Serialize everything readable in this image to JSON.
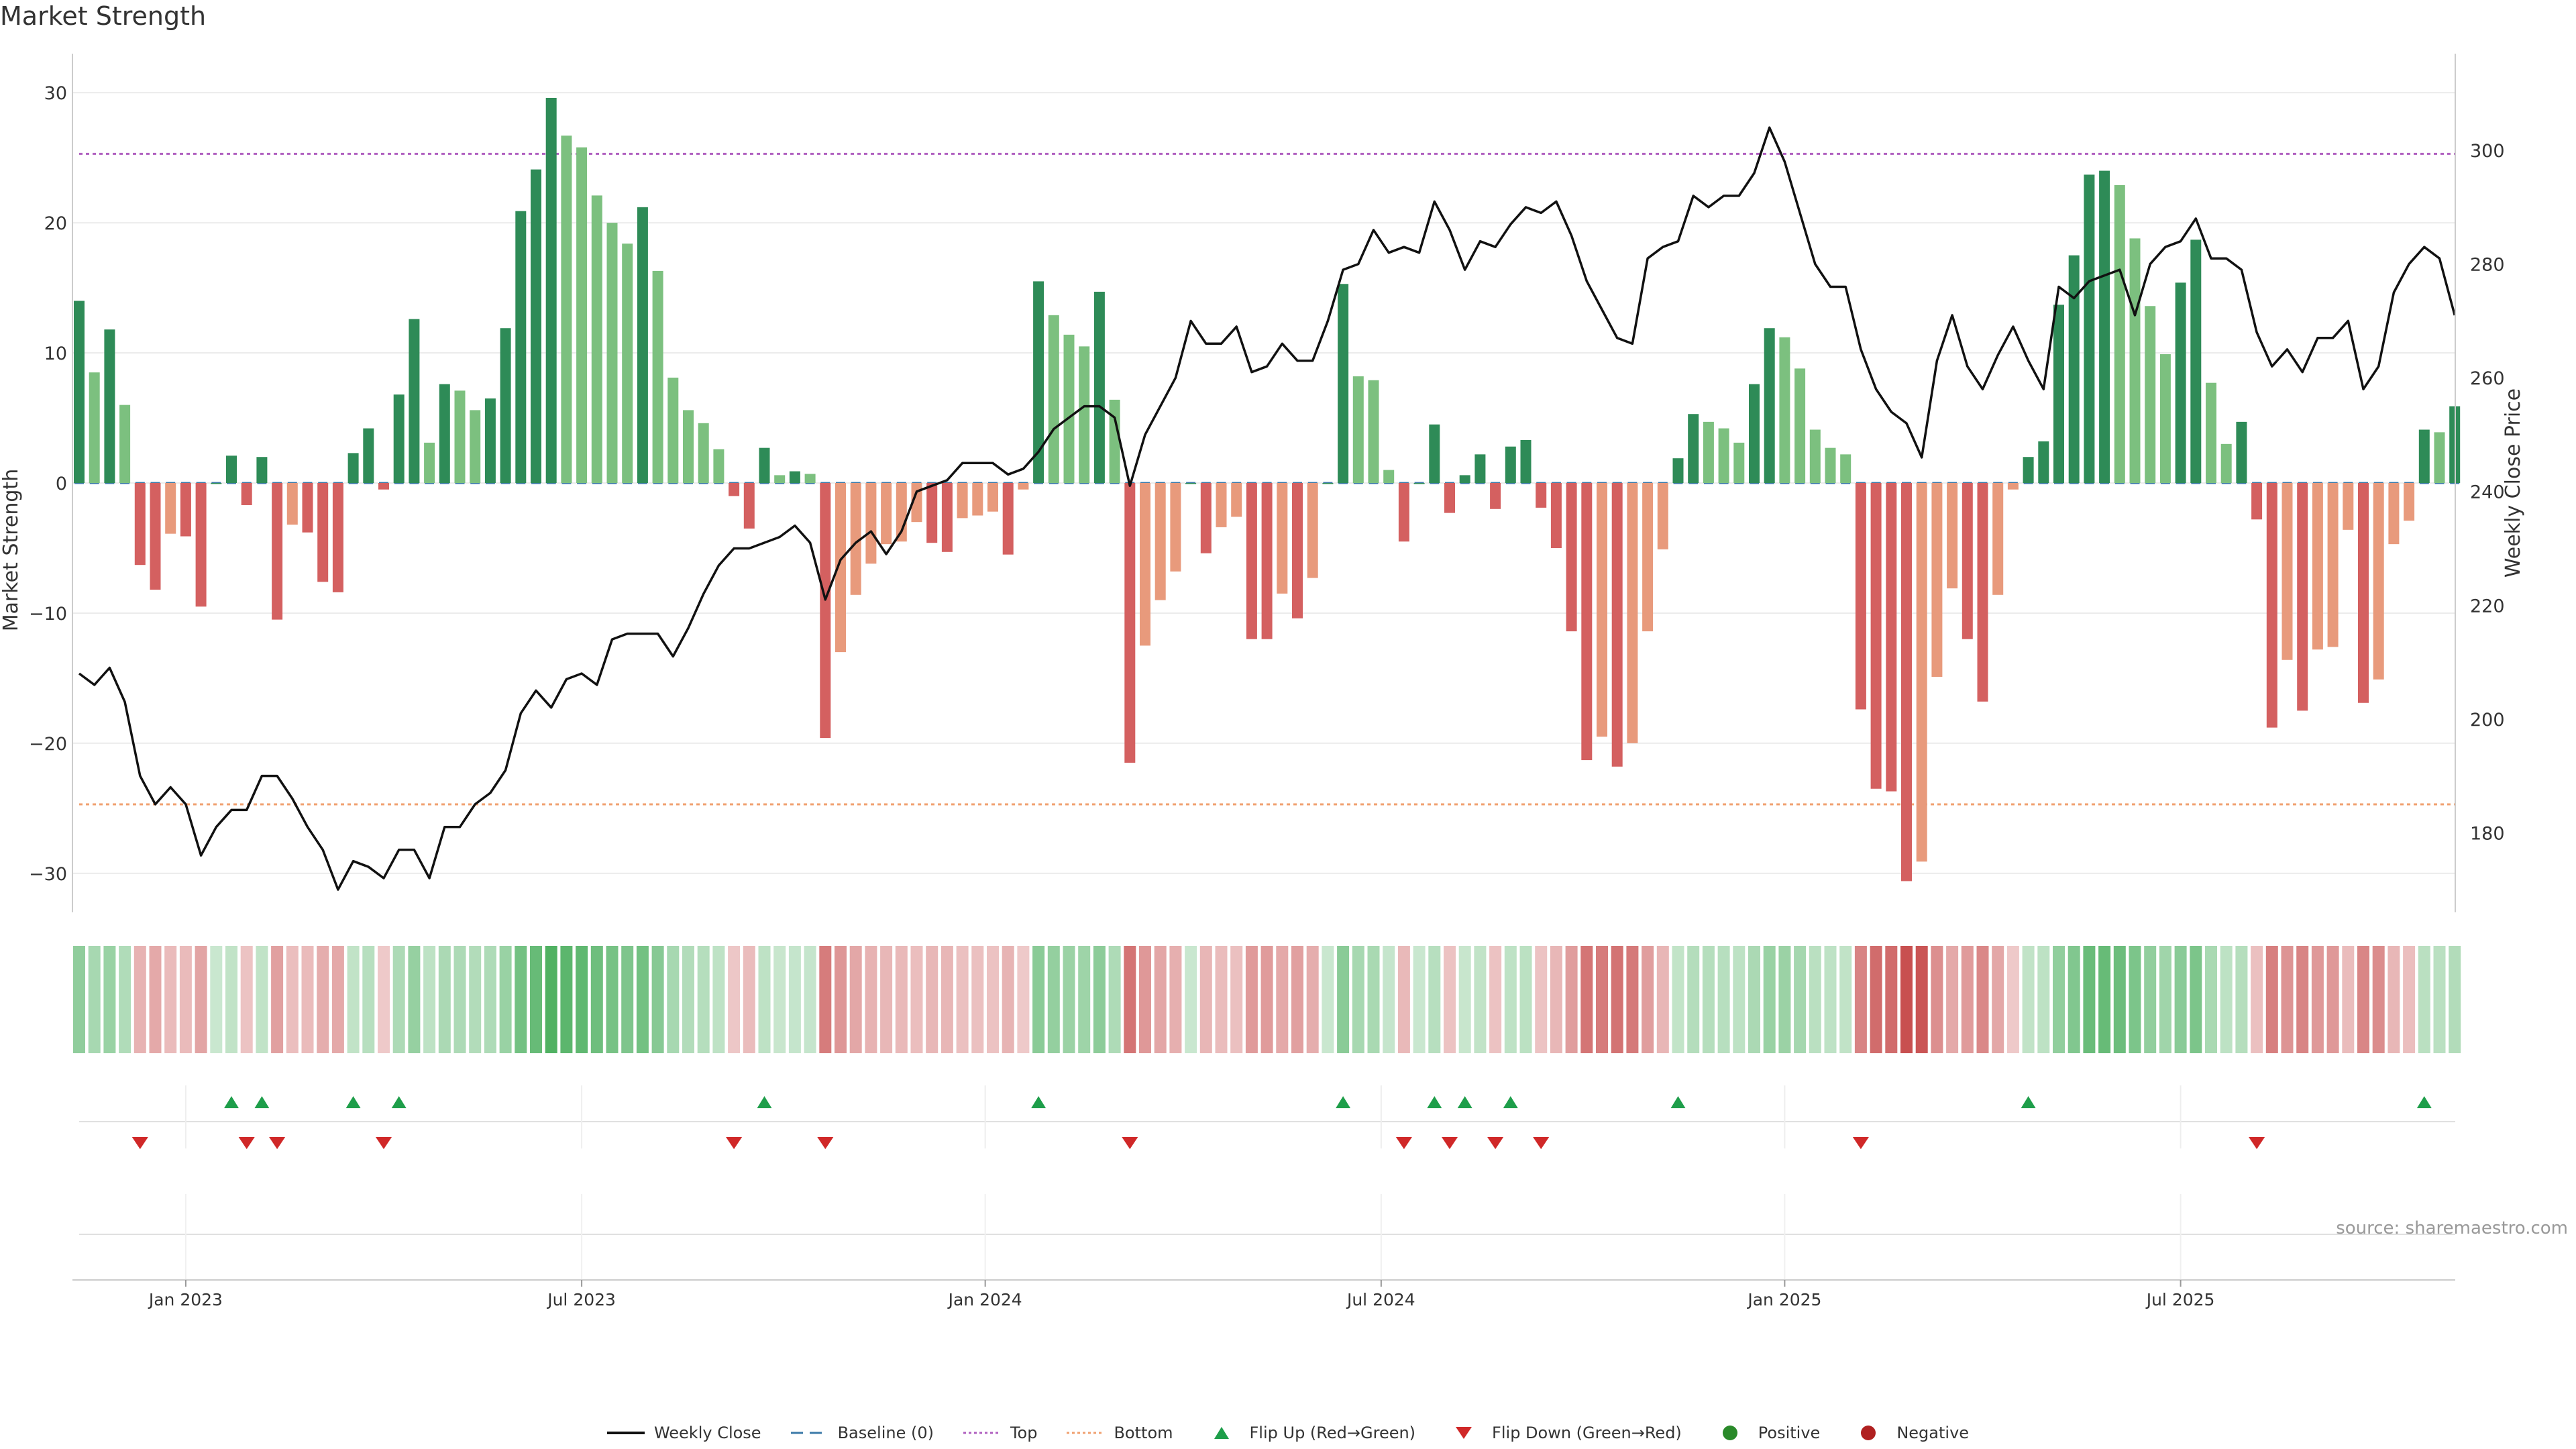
{
  "title": "Market Strength",
  "source": "source: sharemaestro.com",
  "chart_data": {
    "type": "bar",
    "title": "Market Strength",
    "left_axis": {
      "label": "Market Strength",
      "ylim": [
        -33,
        33
      ],
      "ticks": [
        30,
        20,
        10,
        0,
        -10,
        -20,
        -30
      ]
    },
    "right_axis": {
      "label": "Weekly Close Price",
      "ylim": [
        166,
        317
      ],
      "ticks": [
        300,
        280,
        260,
        240,
        220,
        200,
        180
      ]
    },
    "top_level": 25.3,
    "bottom_level": -24.7,
    "x_ticks": [
      {
        "label": "Jan 2023",
        "week": 7
      },
      {
        "label": "Jul 2023",
        "week": 33
      },
      {
        "label": "Jan 2024",
        "week": 59.5
      },
      {
        "label": "Jul 2024",
        "week": 85.5
      },
      {
        "label": "Jan 2025",
        "week": 112
      },
      {
        "label": "Jul 2025",
        "week": 138
      }
    ],
    "strength": [
      14,
      8.5,
      11.8,
      6,
      -6.3,
      -8.2,
      -3.9,
      -4.1,
      -9.5,
      0,
      2.1,
      -1.7,
      2,
      -10.5,
      -3.2,
      -3.8,
      -7.6,
      -8.4,
      2.3,
      4.2,
      -0.5,
      6.8,
      12.6,
      3.1,
      7.6,
      7.1,
      5.6,
      6.5,
      11.9,
      20.9,
      24.1,
      29.6,
      26.7,
      25.8,
      22.1,
      20,
      18.4,
      21.2,
      16.3,
      8.1,
      5.6,
      4.6,
      2.6,
      -1,
      -3.5,
      2.7,
      0.6,
      0.9,
      0.7,
      -19.6,
      -13,
      -8.6,
      -6.2,
      -4.7,
      -4.5,
      -3,
      -4.6,
      -5.3,
      -2.7,
      -2.5,
      -2.2,
      -5.5,
      -0.5,
      15.5,
      12.9,
      11.4,
      10.5,
      14.7,
      6.4,
      -21.5,
      -12.5,
      -9,
      -6.8,
      0,
      -5.4,
      -3.4,
      -2.6,
      -12,
      -12,
      -8.5,
      -10.4,
      -7.3,
      0,
      15.3,
      8.2,
      7.9,
      1,
      -4.5,
      0,
      4.5,
      -2.3,
      0.6,
      2.2,
      -2,
      2.8,
      3.3,
      -1.9,
      -5,
      -11.4,
      -21.3,
      -19.5,
      -21.8,
      -20,
      -11.4,
      -5.1,
      1.9,
      5.3,
      4.7,
      4.2,
      3.1,
      7.6,
      11.9,
      11.2,
      8.8,
      4.1,
      2.7,
      2.2,
      -17.4,
      -23.5,
      -23.7,
      -30.6,
      -29.1,
      -14.9,
      -8.1,
      -12,
      -16.8,
      -8.6,
      -0.5,
      2,
      3.2,
      13.7,
      17.5,
      23.7,
      24,
      22.9,
      18.8,
      13.6,
      9.9,
      15.4,
      18.7,
      7.7,
      3,
      4.7,
      -2.8,
      -18.8,
      -13.6,
      -17.5,
      -12.8,
      -12.6,
      -3.6,
      -16.9,
      -15.1,
      -4.7,
      -2.9,
      4.1,
      3.9,
      5.9
    ],
    "close": [
      208,
      206,
      209,
      203,
      190,
      185,
      188,
      185,
      176,
      181,
      184,
      184,
      190,
      190,
      186,
      181,
      177,
      170,
      175,
      174,
      172,
      177,
      177,
      172,
      181,
      181,
      185,
      187,
      191,
      201,
      205,
      202,
      207,
      208,
      206,
      214,
      215,
      215,
      215,
      211,
      216,
      222,
      227,
      230,
      230,
      231,
      232,
      234,
      231,
      221,
      228,
      231,
      233,
      229,
      233,
      240,
      241,
      242,
      245,
      245,
      245,
      243,
      244,
      247,
      251,
      253,
      255,
      255,
      253,
      241,
      250,
      255,
      260,
      270,
      266,
      266,
      269,
      261,
      262,
      266,
      263,
      263,
      270,
      279,
      280,
      286,
      282,
      283,
      282,
      291,
      286,
      279,
      284,
      283,
      287,
      290,
      289,
      291,
      285,
      277,
      272,
      267,
      266,
      281,
      283,
      284,
      292,
      290,
      292,
      292,
      296,
      304,
      298,
      289,
      280,
      276,
      276,
      265,
      258,
      254,
      252,
      246,
      263,
      271,
      262,
      258,
      264,
      269,
      263,
      258,
      276,
      274,
      277,
      278,
      279,
      271,
      280,
      283,
      284,
      288,
      281,
      281,
      279,
      268,
      262,
      265,
      261,
      267,
      267,
      270,
      258,
      262,
      275,
      280,
      283,
      281,
      271
    ],
    "flip_up_weeks": [
      10,
      12,
      18,
      21,
      45,
      63,
      83,
      89,
      91,
      94,
      105,
      128,
      154
    ],
    "flip_down_weeks": [
      4,
      11,
      13,
      20,
      43,
      49,
      69,
      87,
      90,
      93,
      96,
      117,
      143
    ],
    "colors": {
      "positive_strong": "#2E8B57",
      "positive_weak": "#7CC07F",
      "negative_strong": "#D46060",
      "negative_weak": "#E89A7C",
      "line": "#111111",
      "baseline": "#3B7AA8",
      "top": "#B060C0",
      "bottom": "#F0A070",
      "flip_up": "#1E9E4A",
      "flip_down": "#D02828",
      "positive_dot": "#2A8A2A",
      "negative_dot": "#B02020"
    }
  },
  "legend": [
    {
      "label": "Weekly Close",
      "icon": "solid-line",
      "color": "#111111"
    },
    {
      "label": "Baseline (0)",
      "icon": "dash-line",
      "color": "#3B7AA8"
    },
    {
      "label": "Top",
      "icon": "dotted-line",
      "color": "#B060C0"
    },
    {
      "label": "Bottom",
      "icon": "dotted-line",
      "color": "#F0A070"
    },
    {
      "label": "Flip Up (Red→Green)",
      "icon": "triangle-up",
      "color": "#1E9E4A"
    },
    {
      "label": "Flip Down (Green→Red)",
      "icon": "triangle-down",
      "color": "#D02828"
    },
    {
      "label": "Positive",
      "icon": "dot",
      "color": "#2A8A2A"
    },
    {
      "label": "Negative",
      "icon": "dot",
      "color": "#B02020"
    }
  ]
}
